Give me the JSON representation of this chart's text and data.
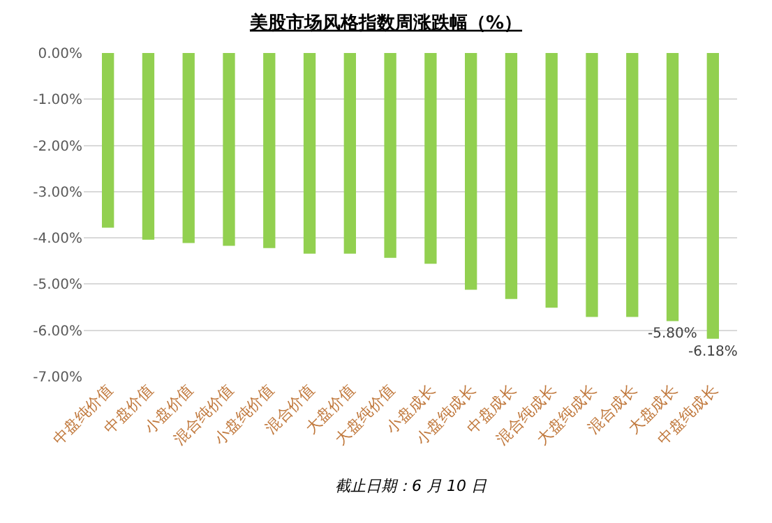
{
  "chart_data": {
    "type": "bar",
    "title": "美股市场风格指数周涨跌幅（%）",
    "categories": [
      "中盘纯价值",
      "中盘价值",
      "小盘价值",
      "混合纯价值",
      "小盘纯价值",
      "混合价值",
      "大盘价值",
      "大盘纯价值",
      "小盘成长",
      "小盘纯成长",
      "中盘成长",
      "混合纯成长",
      "大盘纯成长",
      "混合成长",
      "大盘成长",
      "中盘纯成长"
    ],
    "values": [
      -3.78,
      -4.04,
      -4.11,
      -4.17,
      -4.22,
      -4.34,
      -4.34,
      -4.43,
      -4.56,
      -5.12,
      -5.32,
      -5.51,
      -5.71,
      -5.71,
      -5.8,
      -6.18
    ],
    "value_labels": [
      null,
      null,
      null,
      null,
      null,
      null,
      null,
      null,
      null,
      null,
      null,
      null,
      null,
      null,
      "-5.80%",
      "-6.18%"
    ],
    "color": "#92d050",
    "ylim": [
      -7.0,
      0.0
    ],
    "yticks": [
      {
        "value": 0,
        "label": "0.00%"
      },
      {
        "value": -1,
        "label": "-1.00%"
      },
      {
        "value": -2,
        "label": "-2.00%"
      },
      {
        "value": -3,
        "label": "-3.00%"
      },
      {
        "value": -4,
        "label": "-4.00%"
      },
      {
        "value": -5,
        "label": "-5.00%"
      },
      {
        "value": -6,
        "label": "-6.00%"
      },
      {
        "value": -7,
        "label": "-7.00%"
      }
    ],
    "grid": "y",
    "legend": false,
    "annotations": [
      "截止日期：6 月 10 日"
    ]
  }
}
